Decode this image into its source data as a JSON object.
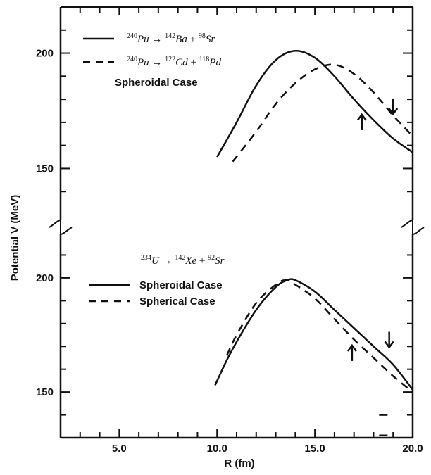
{
  "chart_data": {
    "type": "line",
    "xlabel": "R (fm)",
    "ylabel": "Potential V (MeV)",
    "xlim": [
      2.0,
      20.0
    ],
    "x_ticks": [
      {
        "value": 5.0,
        "label": "5.0"
      },
      {
        "value": 10.0,
        "label": "10.0"
      },
      {
        "value": 15.0,
        "label": "15.0"
      },
      {
        "value": 20.0,
        "label": "20.0"
      }
    ],
    "panels": [
      {
        "id": "top",
        "ylim": [
          130,
          220
        ],
        "y_ticks": [
          {
            "value": 150,
            "label": "150"
          },
          {
            "value": 200,
            "label": "200"
          }
        ],
        "annotation": "Spheroidal Case",
        "series": [
          {
            "name": "240Pu → 142Ba + 98Sr",
            "style": "solid",
            "x": [
              10.0,
              11.0,
              12.0,
              13.0,
              14.0,
              15.0,
              16.0,
              17.0,
              18.0,
              19.0,
              20.0
            ],
            "y": [
              155,
              170,
              186,
              197,
              201,
              198,
              190,
              180,
              171,
              163,
              157
            ]
          },
          {
            "name": "240Pu → 122Cd + 118Pd",
            "style": "dashed",
            "x": [
              10.8,
              12.0,
              13.0,
              14.0,
              15.0,
              16.0,
              17.0,
              18.0,
              19.0,
              20.0
            ],
            "y": [
              153,
              166,
              178,
              187,
              193,
              195,
              191,
              183,
              173,
              164
            ]
          }
        ],
        "legend": [
          {
            "parent": {
              "mass": "240",
              "symbol": "Pu"
            },
            "fragments": [
              {
                "mass": "142",
                "symbol": "Ba"
              },
              {
                "mass": "98",
                "symbol": "Sr"
              }
            ],
            "style": "solid"
          },
          {
            "parent": {
              "mass": "240",
              "symbol": "Pu"
            },
            "fragments": [
              {
                "mass": "122",
                "symbol": "Cd"
              },
              {
                "mass": "118",
                "symbol": "Pd"
              }
            ],
            "style": "dashed"
          }
        ],
        "arrows": [
          {
            "x": 17.4,
            "y": 170,
            "direction": "up"
          },
          {
            "x": 19.0,
            "y": 177,
            "direction": "down"
          }
        ]
      },
      {
        "id": "bottom",
        "ylim": [
          130,
          220
        ],
        "y_ticks": [
          {
            "value": 150,
            "label": "150"
          },
          {
            "value": 200,
            "label": "200"
          }
        ],
        "reaction": {
          "parent": {
            "mass": "234",
            "symbol": "U"
          },
          "fragments": [
            {
              "mass": "142",
              "symbol": "Xe"
            },
            {
              "mass": "92",
              "symbol": "Sr"
            }
          ]
        },
        "series": [
          {
            "name": "Spheroidal Case",
            "style": "solid",
            "x": [
              9.9,
              10.5,
              11.0,
              12.0,
              13.0,
              13.6,
              14.0,
              15.0,
              16.0,
              17.0,
              18.0,
              19.0,
              20.0
            ],
            "y": [
              153,
              164,
              172,
              186,
              196,
              199,
              199,
              194,
              186,
              178,
              170,
              162,
              151
            ]
          },
          {
            "name": "Spherical Case",
            "style": "dashed",
            "x": [
              10.5,
              11.0,
              12.0,
              13.0,
              13.5,
              14.0,
              15.0,
              16.0,
              17.0,
              18.0,
              19.0,
              20.0
            ],
            "y": [
              166,
              175,
              189,
              197,
              199,
              197,
              191,
              182,
              173,
              165,
              157,
              150
            ]
          }
        ],
        "legend": [
          {
            "label": "Spheroidal Case",
            "style": "solid"
          },
          {
            "label": "Spherical Case",
            "style": "dashed"
          }
        ],
        "arrows": [
          {
            "x": 16.9,
            "y": 167,
            "direction": "up"
          },
          {
            "x": 18.8,
            "y": 173,
            "direction": "down"
          }
        ],
        "markers": [
          {
            "x": 18.5,
            "y": 140
          },
          {
            "x": 18.5,
            "y": 131
          }
        ]
      }
    ]
  },
  "text": {
    "ylabel": "Potential V (MeV)",
    "xlabel": "R (fm)",
    "top_annotation": "Spheroidal Case",
    "bottom_legend_solid": "Spheroidal Case",
    "bottom_legend_dashed": "Spherical Case",
    "arrow_sep": "→",
    "plus": "+"
  }
}
